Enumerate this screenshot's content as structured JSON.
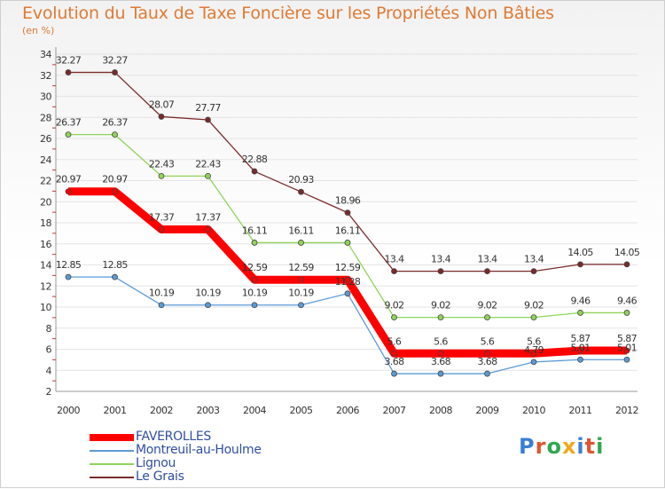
{
  "header": {
    "title": "Evolution du Taux de Taxe Foncière sur les Propriétés Non Bâties",
    "subtitle": "(en %)"
  },
  "logo": {
    "text": "Proxiti",
    "letter_colors": [
      "#3b7fd4",
      "#e0552e",
      "#2fa84f",
      "#f2a71b",
      "#3b7fd4",
      "#e0552e",
      "#2fa84f"
    ]
  },
  "chart_data": {
    "type": "line",
    "title": "Evolution du Taux de Taxe Foncière sur les Propriétés Non Bâties",
    "subtitle": "(en %)",
    "x": [
      "2000",
      "2001",
      "2002",
      "2003",
      "2004",
      "2005",
      "2006",
      "2007",
      "2008",
      "2009",
      "2010",
      "2011",
      "2012"
    ],
    "ylim": [
      2,
      34
    ],
    "yticks": [
      2,
      4,
      6,
      8,
      10,
      12,
      14,
      16,
      18,
      20,
      22,
      24,
      26,
      28,
      30,
      32,
      34
    ],
    "grid": "horizontal",
    "legend_position": "bottom-left",
    "series": [
      {
        "name": "Montreuil-au-Houlme",
        "color": "#5b9bd5",
        "values": [
          12.85,
          12.85,
          10.19,
          10.19,
          10.19,
          10.19,
          11.28,
          3.68,
          3.68,
          3.68,
          4.79,
          5.01,
          5.01
        ],
        "labels": [
          "12.85",
          "12.85",
          "10.19",
          "10.19",
          "10.19",
          "10.19",
          "11.28",
          "3.68",
          "3.68",
          "3.68",
          "4.79",
          "5.01",
          "5.01"
        ]
      },
      {
        "name": "Lignou",
        "color": "#8fd45a",
        "values": [
          26.37,
          26.37,
          22.43,
          22.43,
          16.11,
          16.11,
          16.11,
          9.02,
          9.02,
          9.02,
          9.02,
          9.46,
          9.46
        ],
        "labels": [
          "26.37",
          "26.37",
          "22.43",
          "22.43",
          "16.11",
          "16.11",
          "16.11",
          "9.02",
          "9.02",
          "9.02",
          "9.02",
          "9.46",
          "9.46"
        ]
      },
      {
        "name": "Le Grais",
        "color": "#7a2a2a",
        "values": [
          32.27,
          32.27,
          28.07,
          27.77,
          22.88,
          20.93,
          18.96,
          13.4,
          13.4,
          13.4,
          13.4,
          14.05,
          14.05
        ],
        "labels": [
          "32.27",
          "32.27",
          "28.07",
          "27.77",
          "22.88",
          "20.93",
          "18.96",
          "13.4",
          "13.4",
          "13.4",
          "13.4",
          "14.05",
          "14.05"
        ]
      },
      {
        "name": "FAVEROLLES",
        "color": "#ff0000",
        "values": [
          20.97,
          20.97,
          17.37,
          17.37,
          12.59,
          12.59,
          12.59,
          5.6,
          5.6,
          5.6,
          5.6,
          5.87,
          5.87
        ],
        "labels": [
          "20.97",
          "20.97",
          "17.37",
          "17.37",
          "12.59",
          "12.59",
          "12.59",
          "5.6",
          "5.6",
          "5.6",
          "5.6",
          "5.87",
          "5.87"
        ]
      }
    ],
    "legend_order": [
      "FAVEROLLES",
      "Montreuil-au-Houlme",
      "Lignou",
      "Le Grais"
    ]
  }
}
